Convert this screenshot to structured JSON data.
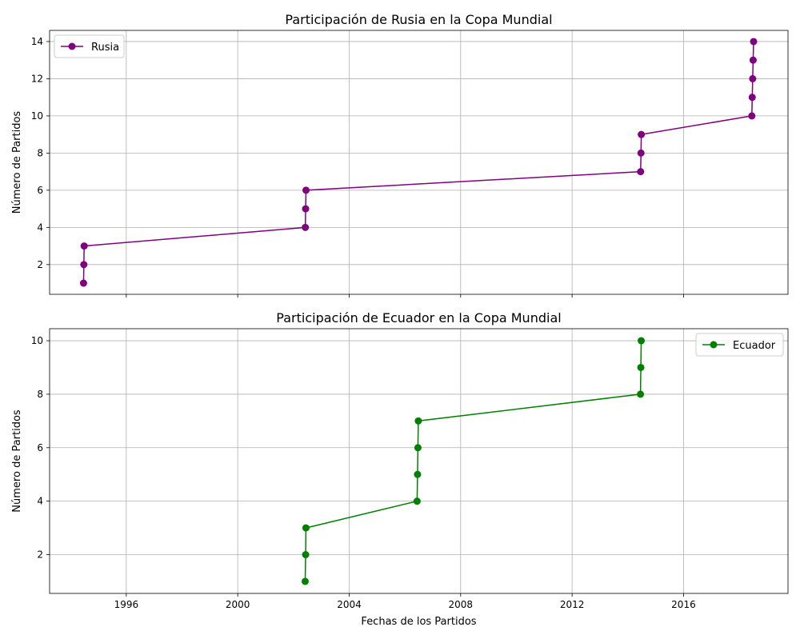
{
  "chart_data": [
    {
      "type": "line",
      "title": "Participación de Rusia en la Copa Mundial",
      "xlabel": "",
      "ylabel": "Número de Partidos",
      "xlim": [
        "1993-04-01",
        "2019-10-01"
      ],
      "ylim": [
        0.4,
        14.6
      ],
      "x_ticks": [
        "1996",
        "2000",
        "2004",
        "2008",
        "2012",
        "2016"
      ],
      "x_tick_labels_visible": false,
      "y_ticks": [
        "2",
        "4",
        "6",
        "8",
        "10",
        "12",
        "14"
      ],
      "grid": true,
      "legend": "upper left",
      "series": [
        {
          "name": "Rusia",
          "color": "#800080",
          "marker": "circle",
          "points": [
            {
              "x": "1994-06-20",
              "y": 1
            },
            {
              "x": "1994-06-24",
              "y": 2
            },
            {
              "x": "1994-06-28",
              "y": 3
            },
            {
              "x": "2002-06-05",
              "y": 4
            },
            {
              "x": "2002-06-09",
              "y": 5
            },
            {
              "x": "2002-06-14",
              "y": 6
            },
            {
              "x": "2014-06-17",
              "y": 7
            },
            {
              "x": "2014-06-22",
              "y": 8
            },
            {
              "x": "2014-06-26",
              "y": 9
            },
            {
              "x": "2018-06-14",
              "y": 10
            },
            {
              "x": "2018-06-19",
              "y": 11
            },
            {
              "x": "2018-06-25",
              "y": 12
            },
            {
              "x": "2018-07-01",
              "y": 13
            },
            {
              "x": "2018-07-07",
              "y": 14
            }
          ]
        }
      ]
    },
    {
      "type": "line",
      "title": "Participación de Ecuador en la Copa Mundial",
      "xlabel": "Fechas de los Partidos",
      "ylabel": "Número de Partidos",
      "xlim": [
        "1993-04-01",
        "2019-10-01"
      ],
      "ylim": [
        0.55,
        10.45
      ],
      "x_ticks": [
        "1996",
        "2000",
        "2004",
        "2008",
        "2012",
        "2016"
      ],
      "x_tick_labels_visible": true,
      "y_ticks": [
        "2",
        "4",
        "6",
        "8",
        "10"
      ],
      "grid": true,
      "legend": "upper right",
      "series": [
        {
          "name": "Ecuador",
          "color": "#008000",
          "marker": "circle",
          "points": [
            {
              "x": "2002-06-03",
              "y": 1
            },
            {
              "x": "2002-06-09",
              "y": 2
            },
            {
              "x": "2002-06-13",
              "y": 3
            },
            {
              "x": "2006-06-09",
              "y": 4
            },
            {
              "x": "2006-06-15",
              "y": 5
            },
            {
              "x": "2006-06-20",
              "y": 6
            },
            {
              "x": "2006-06-25",
              "y": 7
            },
            {
              "x": "2014-06-15",
              "y": 8
            },
            {
              "x": "2014-06-20",
              "y": 9
            },
            {
              "x": "2014-06-25",
              "y": 10
            }
          ]
        }
      ]
    }
  ]
}
